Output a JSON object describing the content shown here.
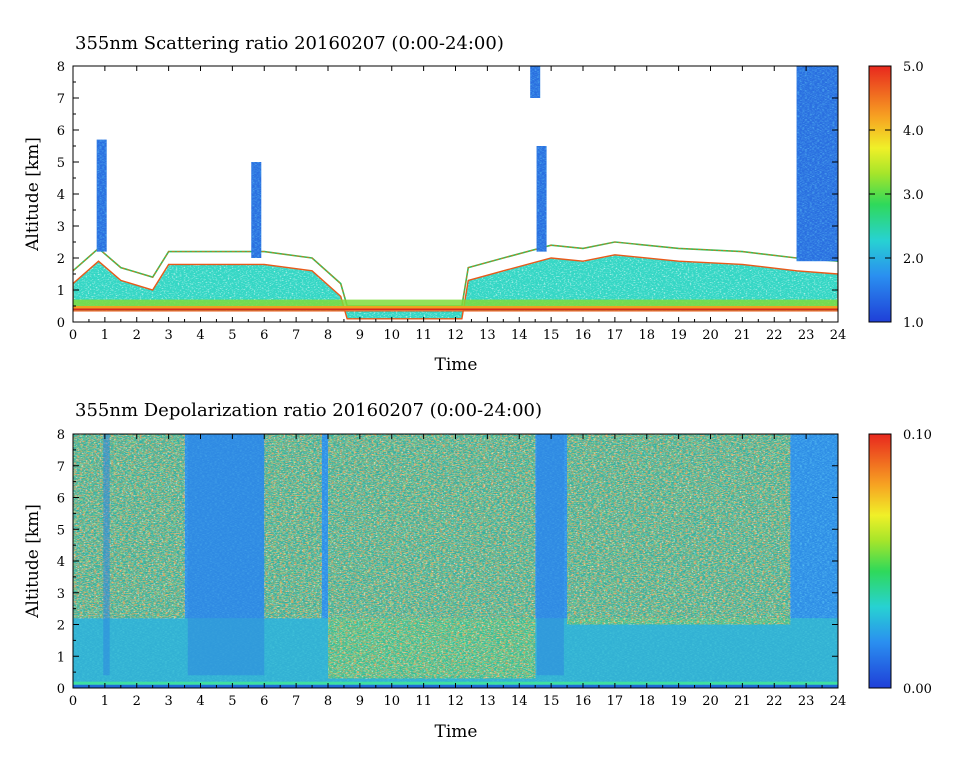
{
  "chart_data": [
    {
      "type": "heatmap",
      "title": "355nm Scattering ratio  20160207 (0:00-24:00)",
      "xlabel": "Time",
      "ylabel": "Altitude [km]",
      "xlim": [
        0,
        24
      ],
      "ylim": [
        0,
        8
      ],
      "x_ticks": [
        "0",
        "1",
        "2",
        "3",
        "4",
        "5",
        "6",
        "7",
        "8",
        "9",
        "10",
        "11",
        "12",
        "13",
        "14",
        "15",
        "16",
        "17",
        "18",
        "19",
        "20",
        "21",
        "22",
        "23",
        "24"
      ],
      "y_ticks": [
        "0",
        "1",
        "2",
        "3",
        "4",
        "5",
        "6",
        "7",
        "8"
      ],
      "colorbar": {
        "range": [
          1.0,
          5.0
        ],
        "ticks": [
          "1.0",
          "2.0",
          "3.0",
          "4.0",
          "5.0"
        ]
      },
      "values_above_range": "white",
      "boundary_layer_top_km": [
        [
          0,
          1.6
        ],
        [
          0.8,
          2.3
        ],
        [
          1.5,
          1.7
        ],
        [
          2.5,
          1.4
        ],
        [
          3.0,
          2.2
        ],
        [
          4.5,
          2.2
        ],
        [
          6.0,
          2.2
        ],
        [
          7.5,
          2.0
        ],
        [
          8.4,
          1.2
        ],
        [
          8.6,
          0.5
        ],
        [
          12.2,
          0.5
        ],
        [
          12.4,
          1.7
        ],
        [
          13.5,
          2.0
        ],
        [
          15.0,
          2.4
        ],
        [
          16.0,
          2.3
        ],
        [
          17.0,
          2.5
        ],
        [
          19.0,
          2.3
        ],
        [
          21.0,
          2.2
        ],
        [
          22.7,
          2.0
        ],
        [
          24,
          1.9
        ]
      ],
      "cloud_columns": [
        {
          "t": 0.9,
          "bottom_km": 2.2,
          "top_km": 5.7
        },
        {
          "t": 5.75,
          "bottom_km": 2.0,
          "top_km": 5.0
        },
        {
          "t": 14.5,
          "bottom_km": 7.0,
          "top_km": 8.0
        },
        {
          "t": 14.7,
          "bottom_km": 2.2,
          "top_km": 5.5
        },
        {
          "t": 23.4,
          "bottom_km": 1.9,
          "top_km": 8.0
        }
      ]
    },
    {
      "type": "heatmap",
      "title": "355nm Depolarization ratio  20160207 (0:00-24:00)",
      "xlabel": "Time",
      "ylabel": "Altitude [km]",
      "xlim": [
        0,
        24
      ],
      "ylim": [
        0,
        8
      ],
      "x_ticks": [
        "0",
        "1",
        "2",
        "3",
        "4",
        "5",
        "6",
        "7",
        "8",
        "9",
        "10",
        "11",
        "12",
        "13",
        "14",
        "15",
        "16",
        "17",
        "18",
        "19",
        "20",
        "21",
        "22",
        "23",
        "24"
      ],
      "y_ticks": [
        "0",
        "1",
        "2",
        "3",
        "4",
        "5",
        "6",
        "7",
        "8"
      ],
      "colorbar": {
        "range": [
          0.0,
          0.1
        ],
        "ticks": [
          "0.00",
          "0.10"
        ]
      },
      "values_above_range": "white",
      "high_depol_periods": [
        {
          "t0": 0,
          "t1": 3.5,
          "from_km": 2.2
        },
        {
          "t0": 6.0,
          "t1": 7.8,
          "from_km": 2.2
        },
        {
          "t0": 8.0,
          "t1": 14.5,
          "from_km": 0.3
        },
        {
          "t0": 15.5,
          "t1": 22.5,
          "from_km": 2.0
        }
      ]
    }
  ]
}
